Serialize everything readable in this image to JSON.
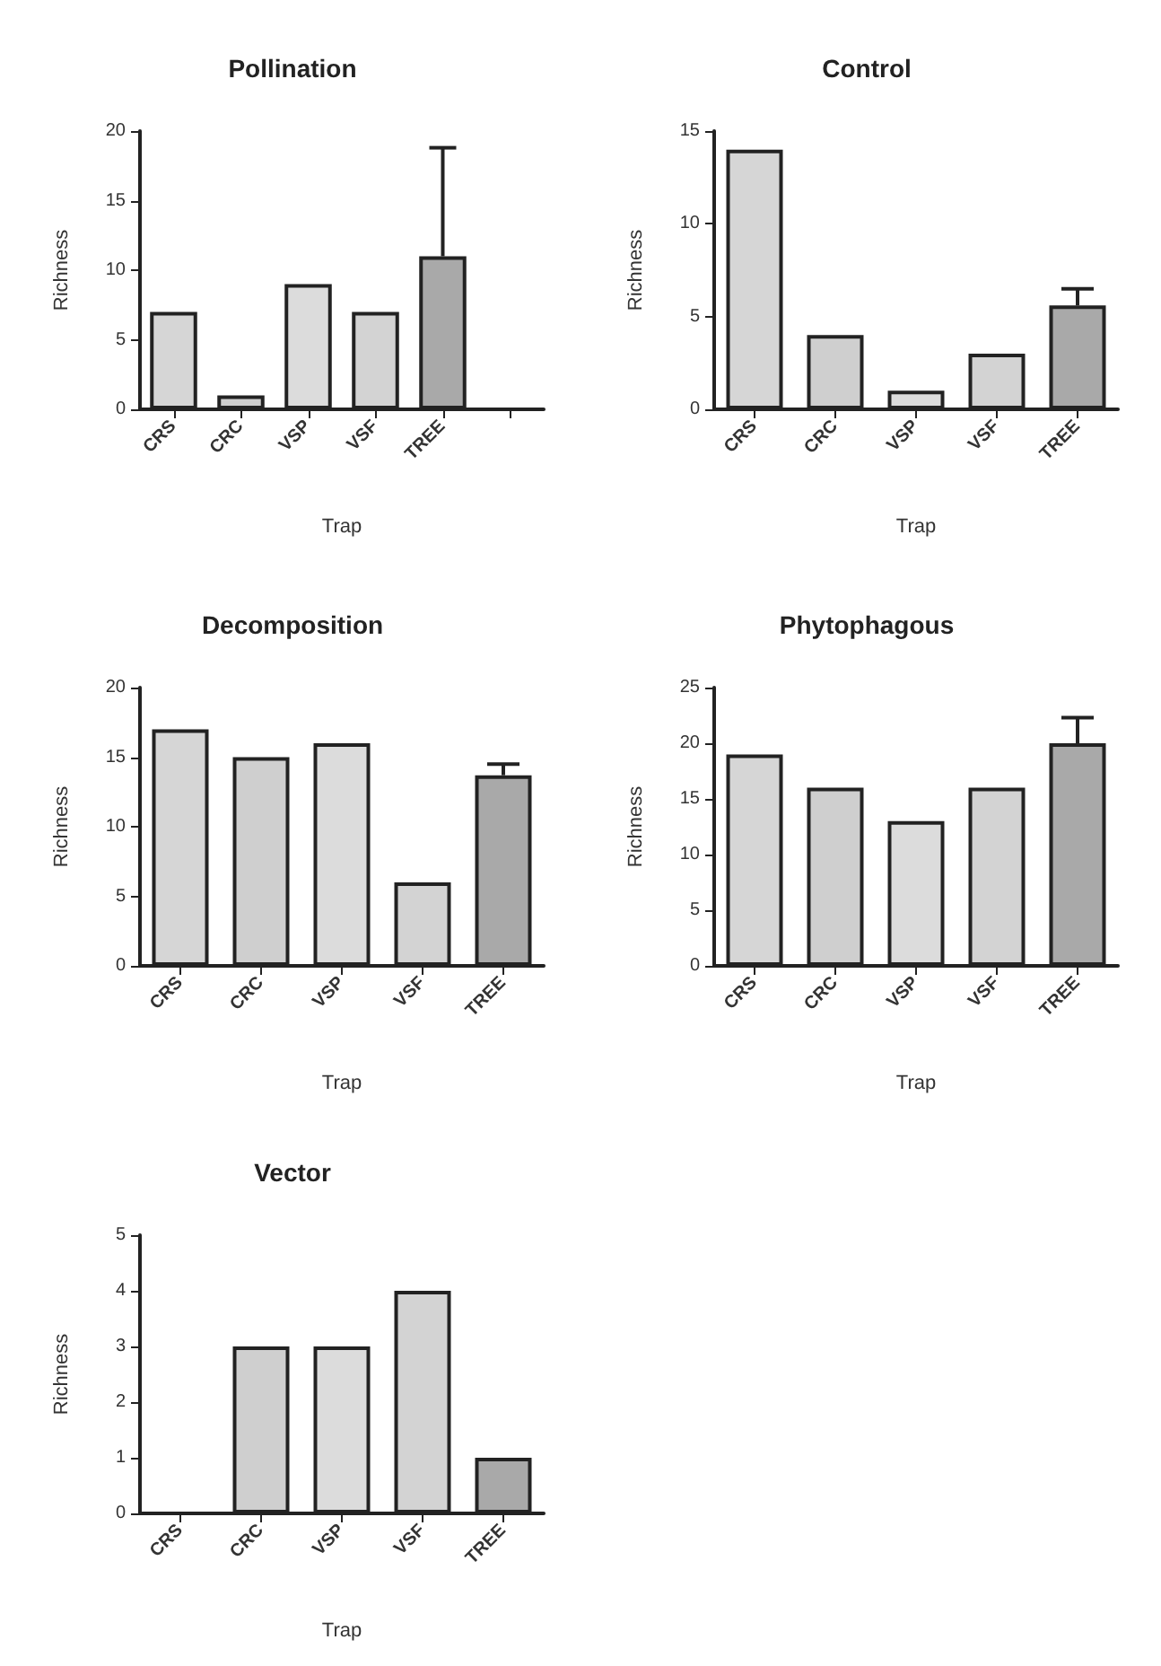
{
  "chart_data": [
    {
      "type": "bar",
      "title": "Pollination",
      "xlabel": "Trap",
      "ylabel": "Richness",
      "categories": [
        "CRS",
        "CRC",
        "VSP",
        "VSF",
        "TREE",
        null
      ],
      "values": [
        7,
        1,
        9,
        7,
        11,
        null
      ],
      "colors": [
        "#d6d6d6",
        "#cfcfcf",
        "#dcdcdc",
        "#d3d3d3",
        "#a9a9a9",
        "#a9a9a9"
      ],
      "errors": [
        null,
        null,
        null,
        null,
        [
          11,
          18.8
        ],
        null
      ],
      "ylim": [
        0,
        20
      ],
      "yticks": [
        0,
        5,
        10,
        15,
        20
      ]
    },
    {
      "type": "bar",
      "title": "Control",
      "xlabel": "Trap",
      "ylabel": "Richness",
      "categories": [
        "CRS",
        "CRC",
        "VSP",
        "VSF",
        "TREE"
      ],
      "values": [
        14,
        4,
        1,
        3,
        5.6
      ],
      "colors": [
        "#d6d6d6",
        "#cfcfcf",
        "#dcdcdc",
        "#d3d3d3",
        "#a9a9a9"
      ],
      "errors": [
        null,
        null,
        null,
        null,
        [
          5.6,
          6.5
        ]
      ],
      "ylim": [
        0,
        15
      ],
      "yticks": [
        0,
        5,
        10,
        15
      ]
    },
    {
      "type": "bar",
      "title": "Decomposition",
      "xlabel": "Trap",
      "ylabel": "Richness",
      "categories": [
        "CRS",
        "CRC",
        "VSP",
        "VSF",
        "TREE"
      ],
      "values": [
        17,
        15,
        16,
        6,
        13.7
      ],
      "colors": [
        "#d6d6d6",
        "#cfcfcf",
        "#dcdcdc",
        "#d3d3d3",
        "#a9a9a9"
      ],
      "errors": [
        null,
        null,
        null,
        null,
        [
          13.7,
          14.5
        ]
      ],
      "ylim": [
        0,
        20
      ],
      "yticks": [
        0,
        5,
        10,
        15,
        20
      ]
    },
    {
      "type": "bar",
      "title": "Phytophagous",
      "xlabel": "Trap",
      "ylabel": "Richness",
      "categories": [
        "CRS",
        "CRC",
        "VSP",
        "VSF",
        "TREE"
      ],
      "values": [
        19,
        16,
        13,
        16,
        20
      ],
      "colors": [
        "#d6d6d6",
        "#cfcfcf",
        "#dcdcdc",
        "#d3d3d3",
        "#a9a9a9"
      ],
      "errors": [
        null,
        null,
        null,
        null,
        [
          20,
          22.3
        ]
      ],
      "ylim": [
        0,
        25
      ],
      "yticks": [
        0,
        5,
        10,
        15,
        20,
        25
      ]
    },
    {
      "type": "bar",
      "title": "Vector",
      "xlabel": "Trap",
      "ylabel": "Richness",
      "categories": [
        "CRS",
        "CRC",
        "VSP",
        "VSF",
        "TREE"
      ],
      "values": [
        null,
        3,
        3,
        4,
        1
      ],
      "colors": [
        "#d6d6d6",
        "#cfcfcf",
        "#dcdcdc",
        "#d3d3d3",
        "#a9a9a9"
      ],
      "ylim": [
        0,
        5
      ],
      "yticks": [
        0,
        1,
        2,
        3,
        4,
        5
      ]
    }
  ]
}
